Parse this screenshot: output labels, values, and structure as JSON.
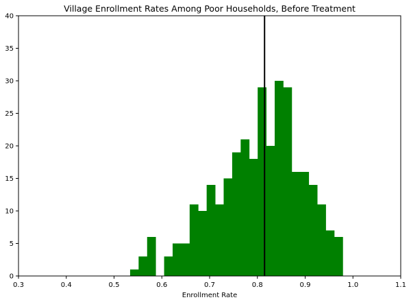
{
  "chart_data": {
    "type": "bar",
    "subtype": "histogram",
    "title": "Village Enrollment Rates Among Poor Households, Before Treatment",
    "xlabel": "Enrollment Rate",
    "ylabel": "",
    "xlim": [
      0.3,
      1.1
    ],
    "ylim": [
      0,
      40
    ],
    "xticks": [
      "0.3",
      "0.4",
      "0.5",
      "0.6",
      "0.7",
      "0.8",
      "0.9",
      "1.0",
      "1.1"
    ],
    "yticks": [
      "0",
      "5",
      "10",
      "15",
      "20",
      "25",
      "30",
      "35",
      "40"
    ],
    "grid": false,
    "bar_color": "#008000",
    "bins": [
      {
        "x0": 0.5336,
        "x1": 0.5514,
        "count": 1
      },
      {
        "x0": 0.5514,
        "x1": 0.5692,
        "count": 3
      },
      {
        "x0": 0.5692,
        "x1": 0.587,
        "count": 6
      },
      {
        "x0": 0.587,
        "x1": 0.6048,
        "count": 0
      },
      {
        "x0": 0.6048,
        "x1": 0.6226,
        "count": 3
      },
      {
        "x0": 0.6226,
        "x1": 0.6404,
        "count": 5
      },
      {
        "x0": 0.6404,
        "x1": 0.6582,
        "count": 5
      },
      {
        "x0": 0.6582,
        "x1": 0.676,
        "count": 11
      },
      {
        "x0": 0.676,
        "x1": 0.6938,
        "count": 10
      },
      {
        "x0": 0.6938,
        "x1": 0.7116,
        "count": 14
      },
      {
        "x0": 0.7116,
        "x1": 0.7294,
        "count": 11
      },
      {
        "x0": 0.7294,
        "x1": 0.7472,
        "count": 15
      },
      {
        "x0": 0.7472,
        "x1": 0.765,
        "count": 19
      },
      {
        "x0": 0.765,
        "x1": 0.7828,
        "count": 21
      },
      {
        "x0": 0.7828,
        "x1": 0.8006,
        "count": 18
      },
      {
        "x0": 0.8006,
        "x1": 0.8184,
        "count": 29
      },
      {
        "x0": 0.8184,
        "x1": 0.8362,
        "count": 20
      },
      {
        "x0": 0.8362,
        "x1": 0.854,
        "count": 30
      },
      {
        "x0": 0.854,
        "x1": 0.8718,
        "count": 29
      },
      {
        "x0": 0.8718,
        "x1": 0.8896,
        "count": 16
      },
      {
        "x0": 0.8896,
        "x1": 0.9074,
        "count": 16
      },
      {
        "x0": 0.9074,
        "x1": 0.9252,
        "count": 14
      },
      {
        "x0": 0.9252,
        "x1": 0.943,
        "count": 11
      },
      {
        "x0": 0.943,
        "x1": 0.9608,
        "count": 7
      },
      {
        "x0": 0.9608,
        "x1": 0.9786,
        "count": 6
      }
    ],
    "vline": {
      "x": 0.815,
      "color": "#000000"
    }
  }
}
